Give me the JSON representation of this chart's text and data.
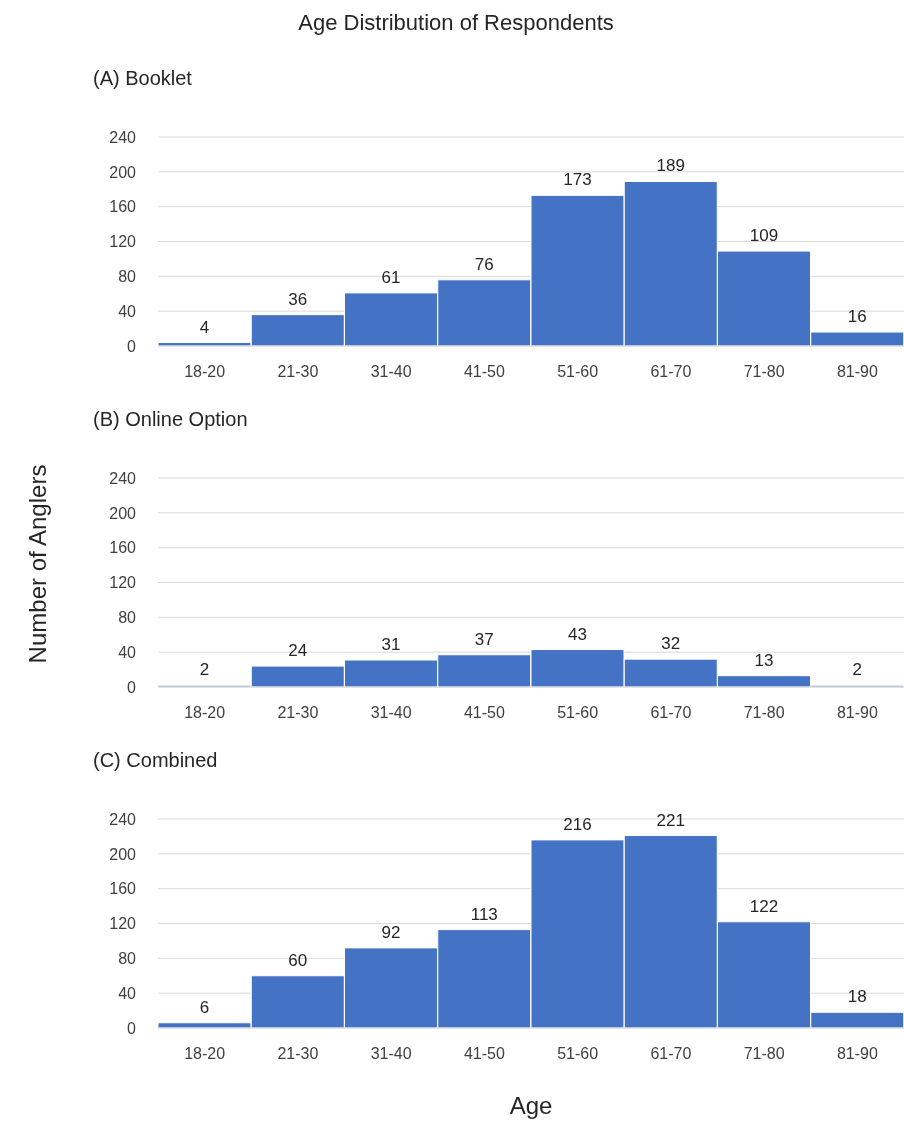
{
  "chart_data": [
    {
      "type": "bar",
      "title": "Age Distribution of Respondents",
      "subtitle": "(A) Booklet",
      "categories": [
        "18-20",
        "21-30",
        "31-40",
        "41-50",
        "51-60",
        "61-70",
        "71-80",
        "81-90"
      ],
      "values": [
        4,
        36,
        61,
        76,
        173,
        189,
        109,
        16
      ],
      "color": "#4472c4",
      "ylim": [
        0,
        240
      ],
      "yticks": [
        0,
        40,
        80,
        120,
        160,
        200,
        240
      ],
      "grid": "y",
      "data_labels": true
    },
    {
      "type": "bar",
      "subtitle": "(B) Online Option",
      "ylabel": "Number of Anglers",
      "categories": [
        "18-20",
        "21-30",
        "31-40",
        "41-50",
        "51-60",
        "61-70",
        "71-80",
        "81-90"
      ],
      "values": [
        2,
        24,
        31,
        37,
        43,
        32,
        13,
        2
      ],
      "color": "#4472c4",
      "ylim": [
        0,
        240
      ],
      "yticks": [
        0,
        40,
        80,
        120,
        160,
        200,
        240
      ],
      "grid": "y",
      "data_labels": true
    },
    {
      "type": "bar",
      "subtitle": "(C) Combined",
      "xlabel": "Age",
      "categories": [
        "18-20",
        "21-30",
        "31-40",
        "41-50",
        "51-60",
        "61-70",
        "71-80",
        "81-90"
      ],
      "values": [
        6,
        60,
        92,
        113,
        216,
        221,
        122,
        18
      ],
      "color": "#4472c4",
      "ylim": [
        0,
        240
      ],
      "yticks": [
        0,
        40,
        80,
        120,
        160,
        200,
        240
      ],
      "grid": "y",
      "data_labels": true
    }
  ]
}
